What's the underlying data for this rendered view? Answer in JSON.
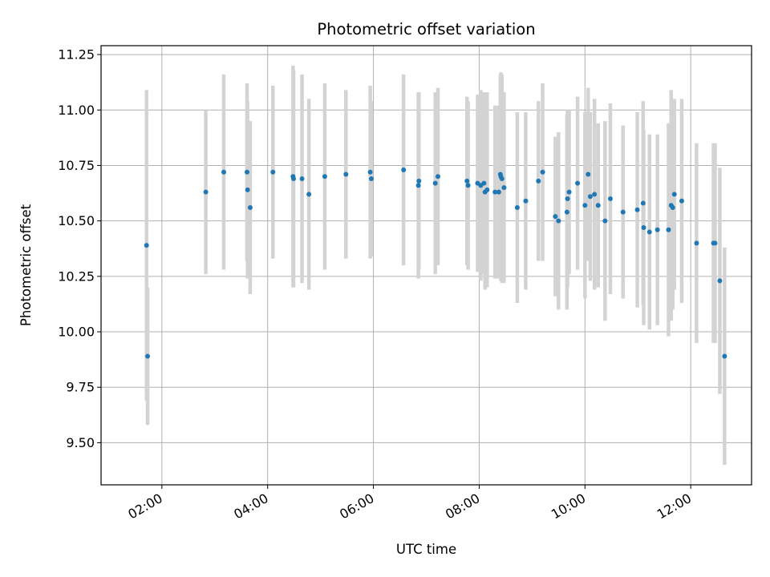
{
  "chart_data": {
    "type": "scatter",
    "title": "Photometric offset variation",
    "xlabel": "UTC time",
    "ylabel": "Photometric offset",
    "xlim_hours": [
      0.85,
      13.15
    ],
    "ylim": [
      9.31,
      11.29
    ],
    "grid": true,
    "legend": "none",
    "x_ticks": [
      {
        "hours": 2,
        "label": "02:00"
      },
      {
        "hours": 4,
        "label": "04:00"
      },
      {
        "hours": 6,
        "label": "06:00"
      },
      {
        "hours": 8,
        "label": "08:00"
      },
      {
        "hours": 10,
        "label": "10:00"
      },
      {
        "hours": 12,
        "label": "12:00"
      }
    ],
    "y_ticks": [
      {
        "value": 9.5,
        "label": "9.50"
      },
      {
        "value": 9.75,
        "label": "9.75"
      },
      {
        "value": 10.0,
        "label": "10.00"
      },
      {
        "value": 10.25,
        "label": "10.25"
      },
      {
        "value": 10.5,
        "label": "10.50"
      },
      {
        "value": 10.75,
        "label": "10.75"
      },
      {
        "value": 11.0,
        "label": "11.00"
      },
      {
        "value": 11.25,
        "label": "11.25"
      }
    ],
    "colors": {
      "marker": "#1f77b4",
      "errorbar": "#d3d3d3",
      "grid": "#b0b0b0",
      "axes": "#000000"
    },
    "series": [
      {
        "name": "offset",
        "x_hours": [
          1.71,
          1.73,
          2.83,
          3.17,
          3.61,
          3.62,
          3.67,
          4.1,
          4.48,
          4.49,
          4.65,
          4.78,
          5.08,
          5.48,
          5.94,
          5.96,
          6.57,
          6.85,
          6.86,
          7.17,
          7.22,
          7.77,
          7.79,
          7.97,
          8.03,
          8.09,
          8.11,
          8.15,
          8.3,
          8.37,
          8.4,
          8.41,
          8.43,
          8.47,
          8.72,
          8.88,
          9.12,
          9.2,
          9.44,
          9.5,
          9.66,
          9.67,
          9.7,
          9.86,
          10.0,
          10.06,
          10.1,
          10.18,
          10.25,
          10.38,
          10.48,
          10.72,
          10.99,
          11.1,
          11.11,
          11.22,
          11.37,
          11.58,
          11.63,
          11.66,
          11.69,
          11.83,
          12.11,
          12.43,
          12.46,
          12.55,
          12.64
        ],
        "y": [
          10.39,
          9.89,
          10.63,
          10.72,
          10.72,
          10.64,
          10.56,
          10.72,
          10.7,
          10.69,
          10.69,
          10.62,
          10.7,
          10.71,
          10.72,
          10.69,
          10.73,
          10.66,
          10.68,
          10.67,
          10.7,
          10.68,
          10.66,
          10.67,
          10.66,
          10.67,
          10.63,
          10.64,
          10.63,
          10.63,
          10.71,
          10.7,
          10.69,
          10.65,
          10.56,
          10.59,
          10.68,
          10.72,
          10.52,
          10.5,
          10.54,
          10.6,
          10.63,
          10.67,
          10.57,
          10.71,
          10.61,
          10.62,
          10.57,
          10.5,
          10.6,
          10.54,
          10.55,
          10.58,
          10.47,
          10.45,
          10.46,
          10.46,
          10.57,
          10.56,
          10.62,
          10.59,
          10.4,
          10.4,
          10.4,
          10.23,
          9.89
        ],
        "yerr": [
          0.7,
          0.31,
          0.37,
          0.44,
          0.4,
          0.4,
          0.39,
          0.39,
          0.5,
          0.49,
          0.47,
          0.43,
          0.42,
          0.38,
          0.39,
          0.35,
          0.43,
          0.42,
          0.4,
          0.41,
          0.4,
          0.38,
          0.38,
          0.4,
          0.43,
          0.41,
          0.44,
          0.44,
          0.39,
          0.39,
          0.45,
          0.47,
          0.47,
          0.43,
          0.43,
          0.4,
          0.36,
          0.4,
          0.36,
          0.4,
          0.44,
          0.4,
          0.37,
          0.39,
          0.42,
          0.39,
          0.38,
          0.43,
          0.37,
          0.45,
          0.43,
          0.39,
          0.44,
          0.46,
          0.44,
          0.44,
          0.43,
          0.48,
          0.52,
          0.46,
          0.43,
          0.46,
          0.45,
          0.45,
          0.45,
          0.51,
          0.49
        ]
      }
    ]
  }
}
